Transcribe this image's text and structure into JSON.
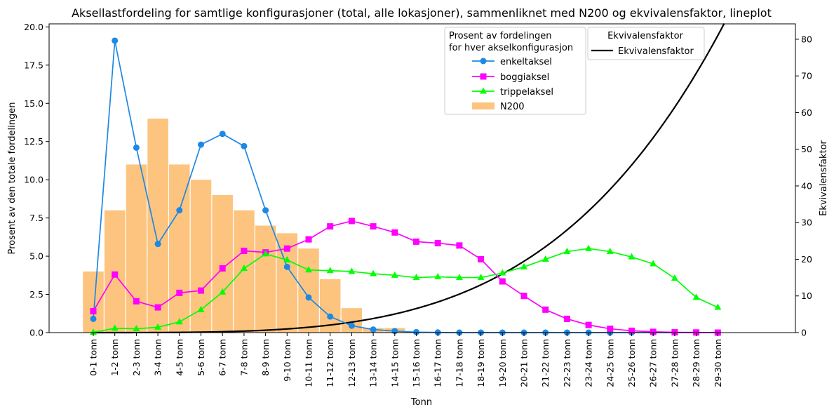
{
  "chart_data": {
    "type": "line",
    "title": "Aksellastfordeling for samtlige konfigurasjoner (total, alle lokasjoner), sammenliknet med N200 og ekvivalensfaktor, lineplot",
    "xlabel": "Tonn",
    "ylabel": "Prosent av den totale fordelingen",
    "ylabel_right": "Ekvivalensfaktor",
    "ylim": [
      0,
      20.2
    ],
    "ylim_right": [
      0,
      84.2
    ],
    "yticks": [
      "0.0",
      "2.5",
      "5.0",
      "7.5",
      "10.0",
      "12.5",
      "15.0",
      "17.5",
      "20.0"
    ],
    "yticks_right": [
      "0",
      "10",
      "20",
      "30",
      "40",
      "50",
      "60",
      "70",
      "80"
    ],
    "categories": [
      "0-1 tonn",
      "1-2 tonn",
      "2-3 tonn",
      "3-4 tonn",
      "4-5 tonn",
      "5-6 tonn",
      "6-7 tonn",
      "7-8 tonn",
      "8-9 tonn",
      "9-10 tonn",
      "10-11 tonn",
      "11-12 tonn",
      "12-13 tonn",
      "13-14 tonn",
      "14-15 tonn",
      "15-16 tonn",
      "16-17 tonn",
      "17-18 tonn",
      "18-19 tonn",
      "19-20 tonn",
      "20-21 tonn",
      "21-22 tonn",
      "22-23 tonn",
      "23-24 tonn",
      "24-25 tonn",
      "25-26 tonn",
      "26-27 tonn",
      "27-28 tonn",
      "28-29 tonn",
      "29-30 tonn"
    ],
    "bars": {
      "name": "N200",
      "color": "#fdc47f",
      "values": [
        4.0,
        8.0,
        11.0,
        14.0,
        11.0,
        10.0,
        9.0,
        8.0,
        7.0,
        6.5,
        5.5,
        3.5,
        1.6,
        0.3,
        0.3,
        0,
        0,
        0,
        0,
        0,
        0,
        0,
        0,
        0,
        0,
        0,
        0,
        0,
        0,
        0
      ]
    },
    "series": [
      {
        "name": "enkeltaksel",
        "color": "#1e88e5",
        "marker": "circle",
        "values": [
          0.9,
          19.1,
          12.1,
          5.8,
          8.0,
          12.3,
          13.0,
          12.2,
          8.0,
          4.3,
          2.3,
          1.05,
          0.45,
          0.2,
          0.1,
          0.03,
          0.01,
          0,
          0,
          0,
          0,
          0,
          0,
          0,
          0,
          0,
          0,
          0,
          0,
          0
        ]
      },
      {
        "name": "boggiaksel",
        "color": "#ff00ff",
        "marker": "square",
        "values": [
          1.4,
          3.8,
          2.05,
          1.65,
          2.6,
          2.75,
          4.2,
          5.35,
          5.25,
          5.5,
          6.1,
          6.95,
          7.3,
          6.95,
          6.55,
          5.95,
          5.85,
          5.7,
          4.8,
          3.35,
          2.4,
          1.5,
          0.9,
          0.5,
          0.25,
          0.12,
          0.05,
          0.02,
          0.01,
          0.0
        ]
      },
      {
        "name": "trippelaksel",
        "color": "#00ff00",
        "marker": "triangle",
        "values": [
          0.02,
          0.28,
          0.25,
          0.35,
          0.7,
          1.5,
          2.65,
          4.2,
          5.15,
          4.75,
          4.1,
          4.05,
          4.0,
          3.85,
          3.75,
          3.6,
          3.65,
          3.6,
          3.6,
          3.9,
          4.3,
          4.8,
          5.3,
          5.5,
          5.3,
          4.95,
          4.5,
          3.55,
          2.3,
          1.65
        ]
      }
    ],
    "equivalence": {
      "name": "Ekvivalensfaktor",
      "color": "#000000",
      "formula_note": "",
      "x_end_offset": 0.3
    },
    "legend": {
      "title": "Prosent av fordelingen\nfor hver akselkonfigurasjon",
      "placement": "top-center"
    },
    "legend_right": {
      "title": "Ekvivalensfaktor",
      "placement": "top-right"
    },
    "grid": false
  }
}
